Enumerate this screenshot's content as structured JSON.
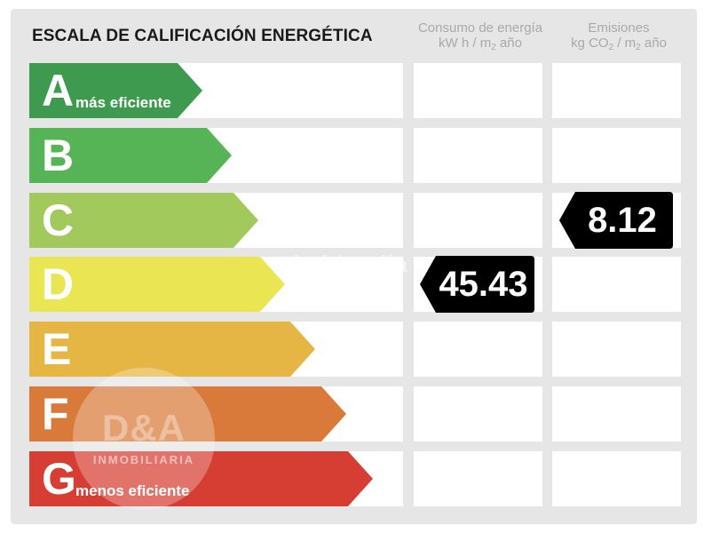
{
  "title": "ESCALA DE CALIFICACIÓN ENERGÉTICA",
  "columns": {
    "energy": {
      "line1": "Consumo de energía",
      "line2_a": "kW h / m",
      "line2_sub": "2",
      "line2_b": " año"
    },
    "emissions": {
      "line1": "Emisiones",
      "line2_a": "kg CO",
      "line2_sub1": "2",
      "line2_b": " / m",
      "line2_sub2": "2",
      "line2_c": " año"
    }
  },
  "bands": [
    {
      "letter": "A",
      "label": "más eficiente",
      "color": "#3d9a4f"
    },
    {
      "letter": "B",
      "label": "",
      "color": "#56b356"
    },
    {
      "letter": "C",
      "label": "",
      "color": "#a2c95b"
    },
    {
      "letter": "D",
      "label": "",
      "color": "#e9e553"
    },
    {
      "letter": "E",
      "label": "",
      "color": "#e6b644"
    },
    {
      "letter": "F",
      "label": "",
      "color": "#d97a3a"
    },
    {
      "letter": "G",
      "label": "menos eficiente",
      "color": "#d63d33"
    }
  ],
  "energy_rating": {
    "band": "D",
    "value": "45.43"
  },
  "emissions_rating": {
    "band": "C",
    "value": "8.12"
  },
  "watermarks": {
    "agency_logo": "D&A",
    "agency_name": "INMOBILIARIA",
    "site": "habitaclia"
  }
}
